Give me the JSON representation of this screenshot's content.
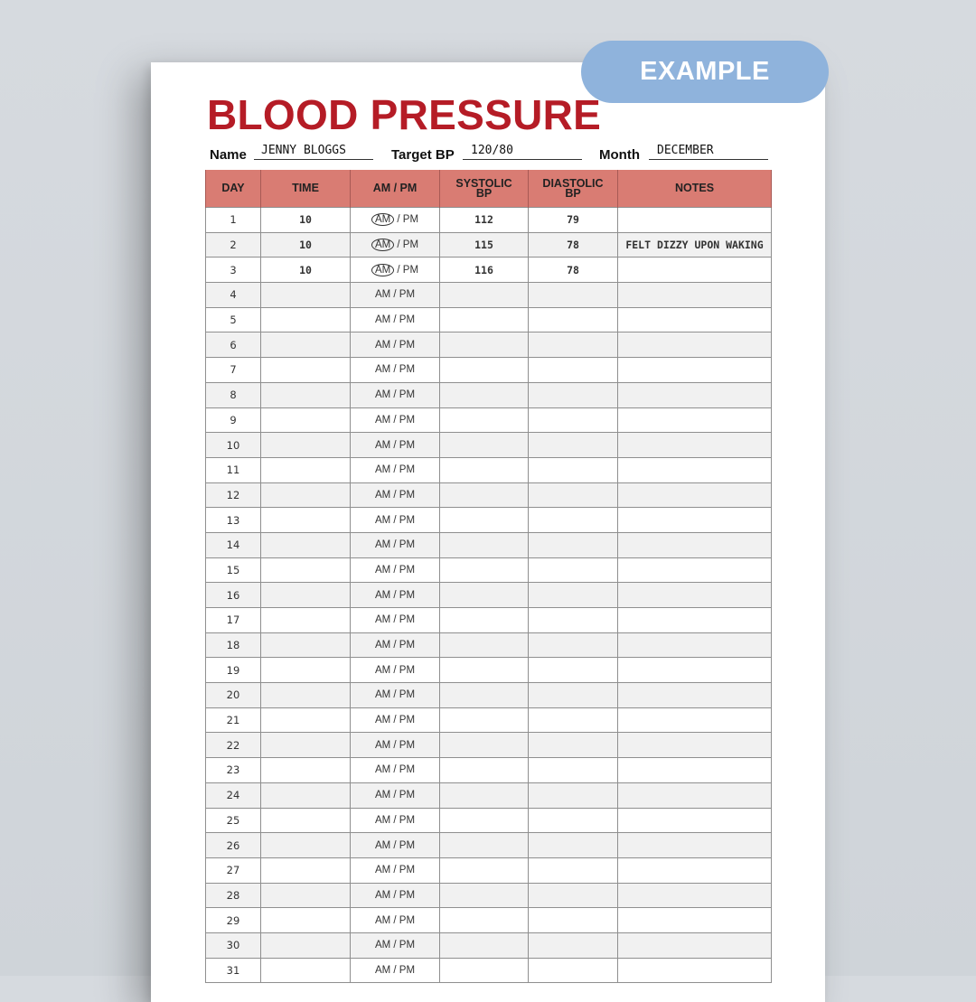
{
  "badge": "EXAMPLE",
  "title": "BLOOD PRESSURE",
  "fields": {
    "name_label": "Name",
    "name_value": "JENNY BLOGGS",
    "target_label": "Target BP",
    "target_value": "120/80",
    "month_label": "Month",
    "month_value": "DECEMBER"
  },
  "table": {
    "headers": {
      "day": "DAY",
      "time": "TIME",
      "ampm": "AM / PM",
      "systolic_1": "SYSTOLIC",
      "systolic_2": "BP",
      "diastolic_1": "DIASTOLIC",
      "diastolic_2": "BP",
      "notes": "NOTES"
    },
    "am": "AM",
    "pm_sep": " / PM",
    "rows": [
      {
        "day": "1",
        "time": "10",
        "ampm": "AM / PM",
        "am_circled": true,
        "systolic": "112",
        "diastolic": "79",
        "notes": ""
      },
      {
        "day": "2",
        "time": "10",
        "ampm": "AM / PM",
        "am_circled": true,
        "systolic": "115",
        "diastolic": "78",
        "notes": "FELT DIZZY UPON WAKING"
      },
      {
        "day": "3",
        "time": "10",
        "ampm": "AM / PM",
        "am_circled": true,
        "systolic": "116",
        "diastolic": "78",
        "notes": ""
      },
      {
        "day": "4",
        "time": "",
        "ampm": "AM / PM",
        "systolic": "",
        "diastolic": "",
        "notes": ""
      },
      {
        "day": "5",
        "time": "",
        "ampm": "AM / PM",
        "systolic": "",
        "diastolic": "",
        "notes": ""
      },
      {
        "day": "6",
        "time": "",
        "ampm": "AM / PM",
        "systolic": "",
        "diastolic": "",
        "notes": ""
      },
      {
        "day": "7",
        "time": "",
        "ampm": "AM / PM",
        "systolic": "",
        "diastolic": "",
        "notes": ""
      },
      {
        "day": "8",
        "time": "",
        "ampm": "AM / PM",
        "systolic": "",
        "diastolic": "",
        "notes": ""
      },
      {
        "day": "9",
        "time": "",
        "ampm": "AM / PM",
        "systolic": "",
        "diastolic": "",
        "notes": ""
      },
      {
        "day": "10",
        "time": "",
        "ampm": "AM / PM",
        "systolic": "",
        "diastolic": "",
        "notes": ""
      },
      {
        "day": "11",
        "time": "",
        "ampm": "AM / PM",
        "systolic": "",
        "diastolic": "",
        "notes": ""
      },
      {
        "day": "12",
        "time": "",
        "ampm": "AM / PM",
        "systolic": "",
        "diastolic": "",
        "notes": ""
      },
      {
        "day": "13",
        "time": "",
        "ampm": "AM / PM",
        "systolic": "",
        "diastolic": "",
        "notes": ""
      },
      {
        "day": "14",
        "time": "",
        "ampm": "AM / PM",
        "systolic": "",
        "diastolic": "",
        "notes": ""
      },
      {
        "day": "15",
        "time": "",
        "ampm": "AM / PM",
        "systolic": "",
        "diastolic": "",
        "notes": ""
      },
      {
        "day": "16",
        "time": "",
        "ampm": "AM / PM",
        "systolic": "",
        "diastolic": "",
        "notes": ""
      },
      {
        "day": "17",
        "time": "",
        "ampm": "AM / PM",
        "systolic": "",
        "diastolic": "",
        "notes": ""
      },
      {
        "day": "18",
        "time": "",
        "ampm": "AM / PM",
        "systolic": "",
        "diastolic": "",
        "notes": ""
      },
      {
        "day": "19",
        "time": "",
        "ampm": "AM / PM",
        "systolic": "",
        "diastolic": "",
        "notes": ""
      },
      {
        "day": "20",
        "time": "",
        "ampm": "AM / PM",
        "systolic": "",
        "diastolic": "",
        "notes": ""
      },
      {
        "day": "21",
        "time": "",
        "ampm": "AM / PM",
        "systolic": "",
        "diastolic": "",
        "notes": ""
      },
      {
        "day": "22",
        "time": "",
        "ampm": "AM / PM",
        "systolic": "",
        "diastolic": "",
        "notes": ""
      },
      {
        "day": "23",
        "time": "",
        "ampm": "AM / PM",
        "systolic": "",
        "diastolic": "",
        "notes": ""
      },
      {
        "day": "24",
        "time": "",
        "ampm": "AM / PM",
        "systolic": "",
        "diastolic": "",
        "notes": ""
      },
      {
        "day": "25",
        "time": "",
        "ampm": "AM / PM",
        "systolic": "",
        "diastolic": "",
        "notes": ""
      },
      {
        "day": "26",
        "time": "",
        "ampm": "AM / PM",
        "systolic": "",
        "diastolic": "",
        "notes": ""
      },
      {
        "day": "27",
        "time": "",
        "ampm": "AM / PM",
        "systolic": "",
        "diastolic": "",
        "notes": ""
      },
      {
        "day": "28",
        "time": "",
        "ampm": "AM / PM",
        "systolic": "",
        "diastolic": "",
        "notes": ""
      },
      {
        "day": "29",
        "time": "",
        "ampm": "AM / PM",
        "systolic": "",
        "diastolic": "",
        "notes": ""
      },
      {
        "day": "30",
        "time": "",
        "ampm": "AM / PM",
        "systolic": "",
        "diastolic": "",
        "notes": ""
      },
      {
        "day": "31",
        "time": "",
        "ampm": "AM / PM",
        "systolic": "",
        "diastolic": "",
        "notes": ""
      }
    ]
  },
  "colors": {
    "title": "#b51c26",
    "header_bg": "#d97c73",
    "badge_bg": "#8fb3dc",
    "row_shade": "#f1f1f1"
  }
}
